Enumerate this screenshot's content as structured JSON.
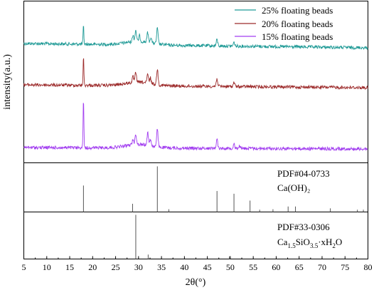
{
  "chart_data": {
    "type": "line",
    "xlabel": "2θ(°)",
    "ylabel": "intensity(a.u.)",
    "xlim": [
      5,
      80
    ],
    "x_ticks": [
      "5",
      "10",
      "15",
      "20",
      "25",
      "30",
      "35",
      "40",
      "45",
      "50",
      "55",
      "60",
      "65",
      "70",
      "75",
      "80"
    ],
    "legend_position": "top-right",
    "series": [
      {
        "name": "25% floating beads",
        "color": "#1f9a96",
        "peaks": [
          [
            18.0,
            26
          ],
          [
            28.8,
            9
          ],
          [
            29.4,
            16
          ],
          [
            30.2,
            8
          ],
          [
            32.0,
            14
          ],
          [
            32.7,
            8
          ],
          [
            34.1,
            22
          ],
          [
            47.1,
            9
          ],
          [
            50.8,
            5
          ]
        ]
      },
      {
        "name": "20% floating beads",
        "color": "#9c2a2a",
        "peaks": [
          [
            18.0,
            40
          ],
          [
            28.8,
            8
          ],
          [
            29.4,
            14
          ],
          [
            32.0,
            12
          ],
          [
            32.6,
            8
          ],
          [
            34.1,
            22
          ],
          [
            47.1,
            11
          ],
          [
            50.8,
            6
          ]
        ]
      },
      {
        "name": "15% floating beads",
        "color": "#a23ef0",
        "peaks": [
          [
            18.0,
            70
          ],
          [
            28.8,
            8
          ],
          [
            29.4,
            15
          ],
          [
            32.0,
            18
          ],
          [
            32.6,
            9
          ],
          [
            34.1,
            24
          ],
          [
            47.1,
            13
          ],
          [
            50.8,
            7
          ],
          [
            52.0,
            4
          ]
        ]
      }
    ],
    "references": [
      {
        "code": "PDF#04-0733",
        "formula": "Ca(OH)₂",
        "sticks": [
          [
            18.0,
            58
          ],
          [
            28.7,
            18
          ],
          [
            34.1,
            100
          ],
          [
            36.6,
            6
          ],
          [
            47.1,
            46
          ],
          [
            50.8,
            40
          ],
          [
            54.3,
            25
          ],
          [
            56.4,
            5
          ],
          [
            59.3,
            6
          ],
          [
            62.6,
            12
          ],
          [
            64.2,
            12
          ],
          [
            71.8,
            8
          ],
          [
            77.7,
            5
          ],
          [
            79.0,
            5
          ]
        ]
      },
      {
        "code": "PDF#33-0306",
        "formula_main": "Ca",
        "formula_sub1": "1.5",
        "formula_mid": "SiO",
        "formula_sub2": "3.5",
        "formula_tail": "·xH",
        "formula_sub3": "2",
        "formula_end": "O",
        "sticks": [
          [
            29.4,
            100
          ],
          [
            32.1,
            10
          ],
          [
            49.8,
            6
          ]
        ]
      }
    ]
  }
}
